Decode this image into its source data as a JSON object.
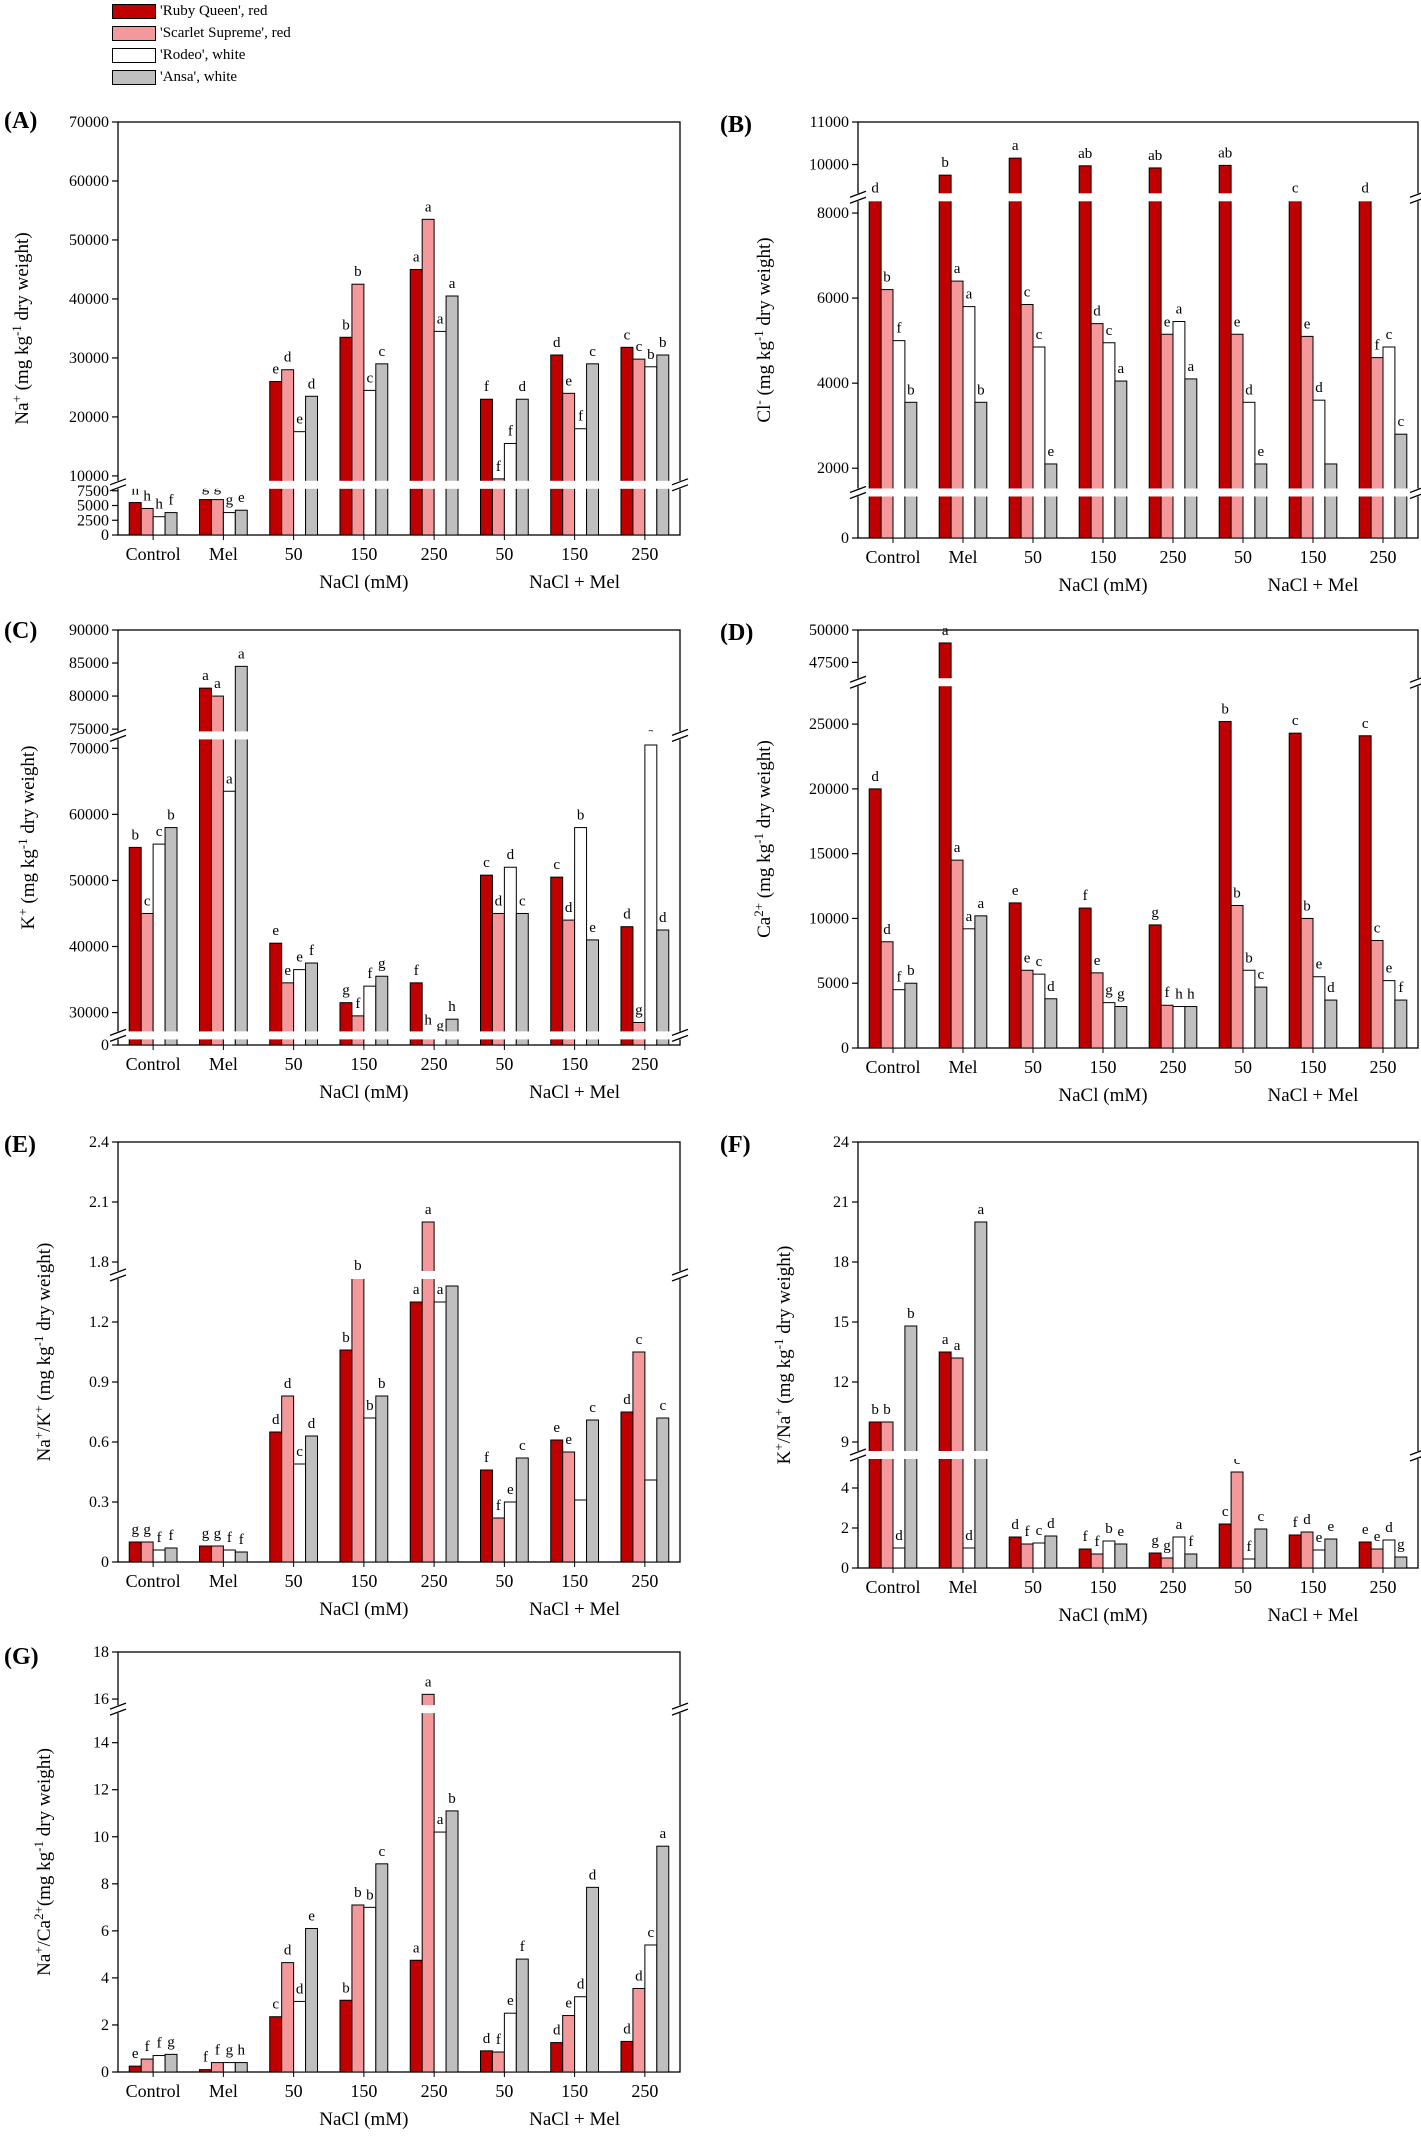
{
  "colors": {
    "ruby": "#c00000",
    "scarlet": "#f4999b",
    "rodeo": "#ffffff",
    "ansa": "#bfbfbf"
  },
  "legend": [
    {
      "label": "'Ruby Queen', red",
      "color": "#c00000"
    },
    {
      "label": "'Scarlet Supreme', red",
      "color": "#f4999b"
    },
    {
      "label": "'Rodeo', white",
      "color": "#ffffff"
    },
    {
      "label": "'Ansa', white",
      "color": "#bfbfbf"
    }
  ],
  "chart_data": [
    {
      "type": "bar",
      "panel": "(A)",
      "ylabel_main": "Na",
      "ylabel_sup": "+",
      "ylabel_rest": " (mg kg",
      "ylabel_exp": "-1",
      "ylabel_end": " dry weight)",
      "categories": [
        "Control",
        "Mel",
        "50",
        "150",
        "250",
        "50",
        "150",
        "250"
      ],
      "group_labels": [
        {
          "text": "NaCl (mM)",
          "from": 2,
          "to": 4
        },
        {
          "text": "NaCl + Mel",
          "from": 5,
          "to": 7
        }
      ],
      "breaks": [
        [
          8000,
          9000
        ]
      ],
      "ylim": [
        0,
        70000
      ],
      "ticks": [
        0,
        2500,
        5000,
        7500,
        10000,
        20000,
        30000,
        40000,
        50000,
        60000,
        70000
      ],
      "series": [
        {
          "values": [
            5500,
            6000,
            26000,
            33500,
            45000,
            23000,
            30500,
            31800
          ],
          "letters": [
            "h",
            "g",
            "e",
            "b",
            "a",
            "f",
            "d",
            "c"
          ]
        },
        {
          "values": [
            4500,
            6000,
            28000,
            42500,
            53500,
            9500,
            24000,
            29800
          ],
          "letters": [
            "h",
            "g",
            "d",
            "b",
            "a",
            "f",
            "e",
            "c"
          ]
        },
        {
          "values": [
            3100,
            3800,
            17500,
            24500,
            34500,
            15500,
            18000,
            28500
          ],
          "letters": [
            "h",
            "g",
            "e",
            "c",
            "a",
            "f",
            "f",
            "b"
          ]
        },
        {
          "values": [
            3800,
            4200,
            23500,
            29000,
            40500,
            23000,
            29000,
            30500
          ],
          "letters": [
            "f",
            "e",
            "d",
            "c",
            "a",
            "d",
            "c",
            "b"
          ]
        }
      ]
    },
    {
      "type": "bar",
      "panel": "(B)",
      "ylabel_main": "Cl",
      "ylabel_sup": "-",
      "ylabel_rest": " (mg kg",
      "ylabel_exp": "-1",
      "ylabel_end": " dry weight)",
      "categories": [
        "Control",
        "Mel",
        "50",
        "150",
        "250",
        "50",
        "150",
        "250"
      ],
      "group_labels": [
        {
          "text": "NaCl (mM)",
          "from": 2,
          "to": 4
        },
        {
          "text": "NaCl + Mel",
          "from": 5,
          "to": 7
        }
      ],
      "breaks": [
        [
          1000,
          1500
        ],
        [
          8300,
          9300
        ]
      ],
      "ylim": [
        0,
        11000
      ],
      "ticks": [
        0,
        2000,
        4000,
        6000,
        8000,
        10000,
        11000
      ],
      "series": [
        {
          "values": [
            9000,
            9750,
            10150,
            9970,
            9920,
            9980,
            9180,
            8980
          ],
          "letters": [
            "d",
            "b",
            "a",
            "ab",
            "ab",
            "ab",
            "c",
            "d"
          ]
        },
        {
          "values": [
            6200,
            6400,
            5850,
            5400,
            5150,
            5150,
            5100,
            4600
          ],
          "letters": [
            "b",
            "a",
            "c",
            "d",
            "e",
            "e",
            "e",
            "f"
          ]
        },
        {
          "values": [
            5000,
            5800,
            4850,
            4950,
            5450,
            3550,
            3600,
            4850
          ],
          "letters": [
            "f",
            "a",
            "c",
            "c",
            "a",
            "d",
            "d",
            "c"
          ]
        },
        {
          "values": [
            3550,
            3550,
            2100,
            4050,
            4100,
            2100,
            2100,
            2800
          ],
          "letters": [
            "b",
            "b",
            "e",
            "a",
            "a",
            "e",
            "",
            "c"
          ]
        }
      ]
    },
    {
      "type": "bar",
      "panel": "(C)",
      "ylabel_main": "K",
      "ylabel_sup": "+",
      "ylabel_rest": " (mg kg",
      "ylabel_exp": "-1",
      "ylabel_end": " dry weight)",
      "categories": [
        "Control",
        "Mel",
        "50",
        "150",
        "250",
        "50",
        "150",
        "250"
      ],
      "group_labels": [
        {
          "text": "NaCl (mM)",
          "from": 2,
          "to": 4
        },
        {
          "text": "NaCl + Mel",
          "from": 5,
          "to": 7
        }
      ],
      "breaks": [
        [
          1000,
          27000
        ],
        [
          71500,
          74500
        ]
      ],
      "ylim": [
        0,
        90000
      ],
      "ticks": [
        0,
        30000,
        40000,
        50000,
        60000,
        70000,
        75000,
        80000,
        85000,
        90000
      ],
      "series": [
        {
          "values": [
            55000,
            81200,
            40500,
            31500,
            34500,
            50800,
            50500,
            43000
          ],
          "letters": [
            "b",
            "a",
            "e",
            "g",
            "f",
            "c",
            "c",
            "d"
          ]
        },
        {
          "values": [
            45000,
            80000,
            34500,
            29500,
            27000,
            45000,
            44000,
            28500
          ],
          "letters": [
            "c",
            "a",
            "e",
            "f",
            "h",
            "d",
            "d",
            "g"
          ]
        },
        {
          "values": [
            55500,
            63500,
            36500,
            34000,
            26500,
            52000,
            58000,
            70500
          ],
          "letters": [
            "c",
            "a",
            "e",
            "f",
            "g",
            "d",
            "b",
            "a"
          ]
        },
        {
          "values": [
            58000,
            84500,
            37500,
            35500,
            29000,
            45000,
            41000,
            42500
          ],
          "letters": [
            "b",
            "a",
            "f",
            "g",
            "h",
            "c",
            "e",
            "d"
          ]
        }
      ]
    },
    {
      "type": "bar",
      "panel": "(D)",
      "ylabel_main": "Ca",
      "ylabel_sup": "2+",
      "ylabel_rest": " (mg kg",
      "ylabel_exp": "-1",
      "ylabel_end": " dry weight)",
      "categories": [
        "Control",
        "Mel",
        "50",
        "150",
        "250",
        "50",
        "150",
        "250"
      ],
      "group_labels": [
        {
          "text": "NaCl (mM)",
          "from": 2,
          "to": 4
        },
        {
          "text": "NaCl + Mel",
          "from": 5,
          "to": 7
        }
      ],
      "breaks": [
        [
          28000,
          46200
        ]
      ],
      "ylim": [
        0,
        50000
      ],
      "ticks": [
        0,
        5000,
        10000,
        15000,
        20000,
        25000,
        47500,
        50000
      ],
      "series": [
        {
          "values": [
            20000,
            49000,
            11200,
            10800,
            9500,
            25200,
            24300,
            24100
          ],
          "letters": [
            "d",
            "a",
            "e",
            "f",
            "g",
            "b",
            "c",
            "c"
          ]
        },
        {
          "values": [
            8200,
            14500,
            6000,
            5800,
            3300,
            11000,
            10000,
            8300
          ],
          "letters": [
            "d",
            "a",
            "e",
            "e",
            "f",
            "b",
            "b",
            "c"
          ]
        },
        {
          "values": [
            4500,
            9200,
            5700,
            3500,
            3200,
            6000,
            5500,
            5200
          ],
          "letters": [
            "f",
            "a",
            "c",
            "g",
            "h",
            "b",
            "e",
            "e"
          ]
        },
        {
          "values": [
            5000,
            10200,
            3800,
            3200,
            3200,
            4700,
            3700,
            3700
          ],
          "letters": [
            "b",
            "a",
            "d",
            "g",
            "h",
            "c",
            "d",
            "f"
          ]
        }
      ]
    },
    {
      "type": "bar",
      "panel": "(E)",
      "ylabel_main": "Na",
      "ylabel_sup": "+",
      "ylabel_rest": "/K",
      "ylabel_sup2": "+",
      "ylabel_rest2": " (mg kg",
      "ylabel_exp": "-1",
      "ylabel_end": " dry weight)",
      "categories": [
        "Control",
        "Mel",
        "50",
        "150",
        "250",
        "50",
        "150",
        "250"
      ],
      "group_labels": [
        {
          "text": "NaCl (mM)",
          "from": 2,
          "to": 4
        },
        {
          "text": "NaCl + Mel",
          "from": 5,
          "to": 7
        }
      ],
      "breaks": [
        [
          1.42,
          1.75
        ]
      ],
      "ylim": [
        0,
        2.4
      ],
      "ticks": [
        0,
        0.3,
        0.6,
        0.9,
        1.2,
        1.8,
        2.1,
        2.4
      ],
      "series": [
        {
          "values": [
            0.1,
            0.08,
            0.65,
            1.06,
            1.3,
            0.46,
            0.61,
            0.75
          ],
          "letters": [
            "g",
            "g",
            "d",
            "b",
            "a",
            "f",
            "e",
            "d"
          ]
        },
        {
          "values": [
            0.1,
            0.08,
            0.83,
            1.72,
            2.0,
            0.22,
            0.55,
            1.05
          ],
          "letters": [
            "g",
            "g",
            "d",
            "b",
            "a",
            "f",
            "e",
            "c"
          ]
        },
        {
          "values": [
            0.06,
            0.06,
            0.49,
            0.72,
            1.3,
            0.3,
            0.31,
            0.41
          ],
          "letters": [
            "f",
            "f",
            "c",
            "b",
            "a",
            "e",
            "",
            ""
          ]
        },
        {
          "values": [
            0.07,
            0.05,
            0.63,
            0.83,
            1.38,
            0.52,
            0.71,
            0.72
          ],
          "letters": [
            "f",
            "f",
            "d",
            "b",
            "a",
            "c",
            "c",
            "c"
          ]
        }
      ]
    },
    {
      "type": "bar",
      "panel": "(F)",
      "ylabel_main": "K",
      "ylabel_sup": "+",
      "ylabel_rest": "/Na",
      "ylabel_sup2": "+",
      "ylabel_rest2": " (mg kg",
      "ylabel_exp": "-1",
      "ylabel_end": " dry weight)",
      "categories": [
        "Control",
        "Mel",
        "50",
        "150",
        "250",
        "50",
        "150",
        "250"
      ],
      "group_labels": [
        {
          "text": "NaCl (mM)",
          "from": 2,
          "to": 4
        },
        {
          "text": "NaCl + Mel",
          "from": 5,
          "to": 7
        }
      ],
      "breaks": [
        [
          5.5,
          8.5
        ]
      ],
      "ylim": [
        0,
        24
      ],
      "ticks": [
        0,
        2,
        4,
        9,
        12,
        15,
        18,
        21,
        24
      ],
      "series": [
        {
          "values": [
            10,
            13.5,
            1.55,
            0.95,
            0.75,
            2.2,
            1.65,
            1.3
          ],
          "letters": [
            "b",
            "a",
            "d",
            "f",
            "g",
            "c",
            "f",
            "e"
          ]
        },
        {
          "values": [
            10,
            13.2,
            1.2,
            0.7,
            0.5,
            4.8,
            1.8,
            0.95
          ],
          "letters": [
            "b",
            "a",
            "f",
            "f",
            "g",
            "c",
            "d",
            "e"
          ]
        },
        {
          "values": [
            1.0,
            1.0,
            1.25,
            1.35,
            1.55,
            0.45,
            0.9,
            1.4
          ],
          "letters": [
            "d",
            "d",
            "c",
            "b",
            "a",
            "f",
            "e",
            "d"
          ]
        },
        {
          "values": [
            14.8,
            20,
            1.6,
            1.2,
            0.7,
            1.95,
            1.45,
            0.55
          ],
          "letters": [
            "b",
            "a",
            "d",
            "e",
            "f",
            "c",
            "e",
            "g"
          ]
        }
      ]
    },
    {
      "type": "bar",
      "panel": "(G)",
      "ylabel_main": "Na",
      "ylabel_sup": "+",
      "ylabel_rest": "/Ca",
      "ylabel_sup2": "2+",
      "ylabel_rest2": "(mg kg",
      "ylabel_exp": "-1",
      "ylabel_end": " dry weight)",
      "categories": [
        "Control",
        "Mel",
        "50",
        "150",
        "250",
        "50",
        "150",
        "250"
      ],
      "group_labels": [
        {
          "text": "NaCl (mM)",
          "from": 2,
          "to": 4
        },
        {
          "text": "NaCl + Mel",
          "from": 5,
          "to": 7
        }
      ],
      "breaks": [
        [
          15.3,
          15.7
        ]
      ],
      "ylim": [
        0,
        18
      ],
      "ticks": [
        0,
        2,
        4,
        6,
        8,
        10,
        12,
        14,
        16,
        18
      ],
      "series": [
        {
          "values": [
            0.25,
            0.1,
            2.35,
            3.05,
            4.75,
            0.9,
            1.25,
            1.3
          ],
          "letters": [
            "e",
            "f",
            "c",
            "b",
            "a",
            "d",
            "d",
            "d"
          ]
        },
        {
          "values": [
            0.55,
            0.4,
            4.65,
            7.1,
            16.2,
            0.85,
            2.4,
            3.55
          ],
          "letters": [
            "f",
            "f",
            "d",
            "b",
            "a",
            "f",
            "e",
            "d"
          ]
        },
        {
          "values": [
            0.7,
            0.4,
            3.0,
            7.0,
            10.2,
            2.5,
            3.2,
            5.4
          ],
          "letters": [
            "f",
            "g",
            "d",
            "b",
            "a",
            "e",
            "d",
            "c"
          ]
        },
        {
          "values": [
            0.75,
            0.4,
            6.1,
            8.85,
            11.1,
            4.8,
            7.85,
            9.6
          ],
          "letters": [
            "g",
            "h",
            "e",
            "c",
            "b",
            "f",
            "d",
            "a"
          ]
        }
      ]
    }
  ]
}
